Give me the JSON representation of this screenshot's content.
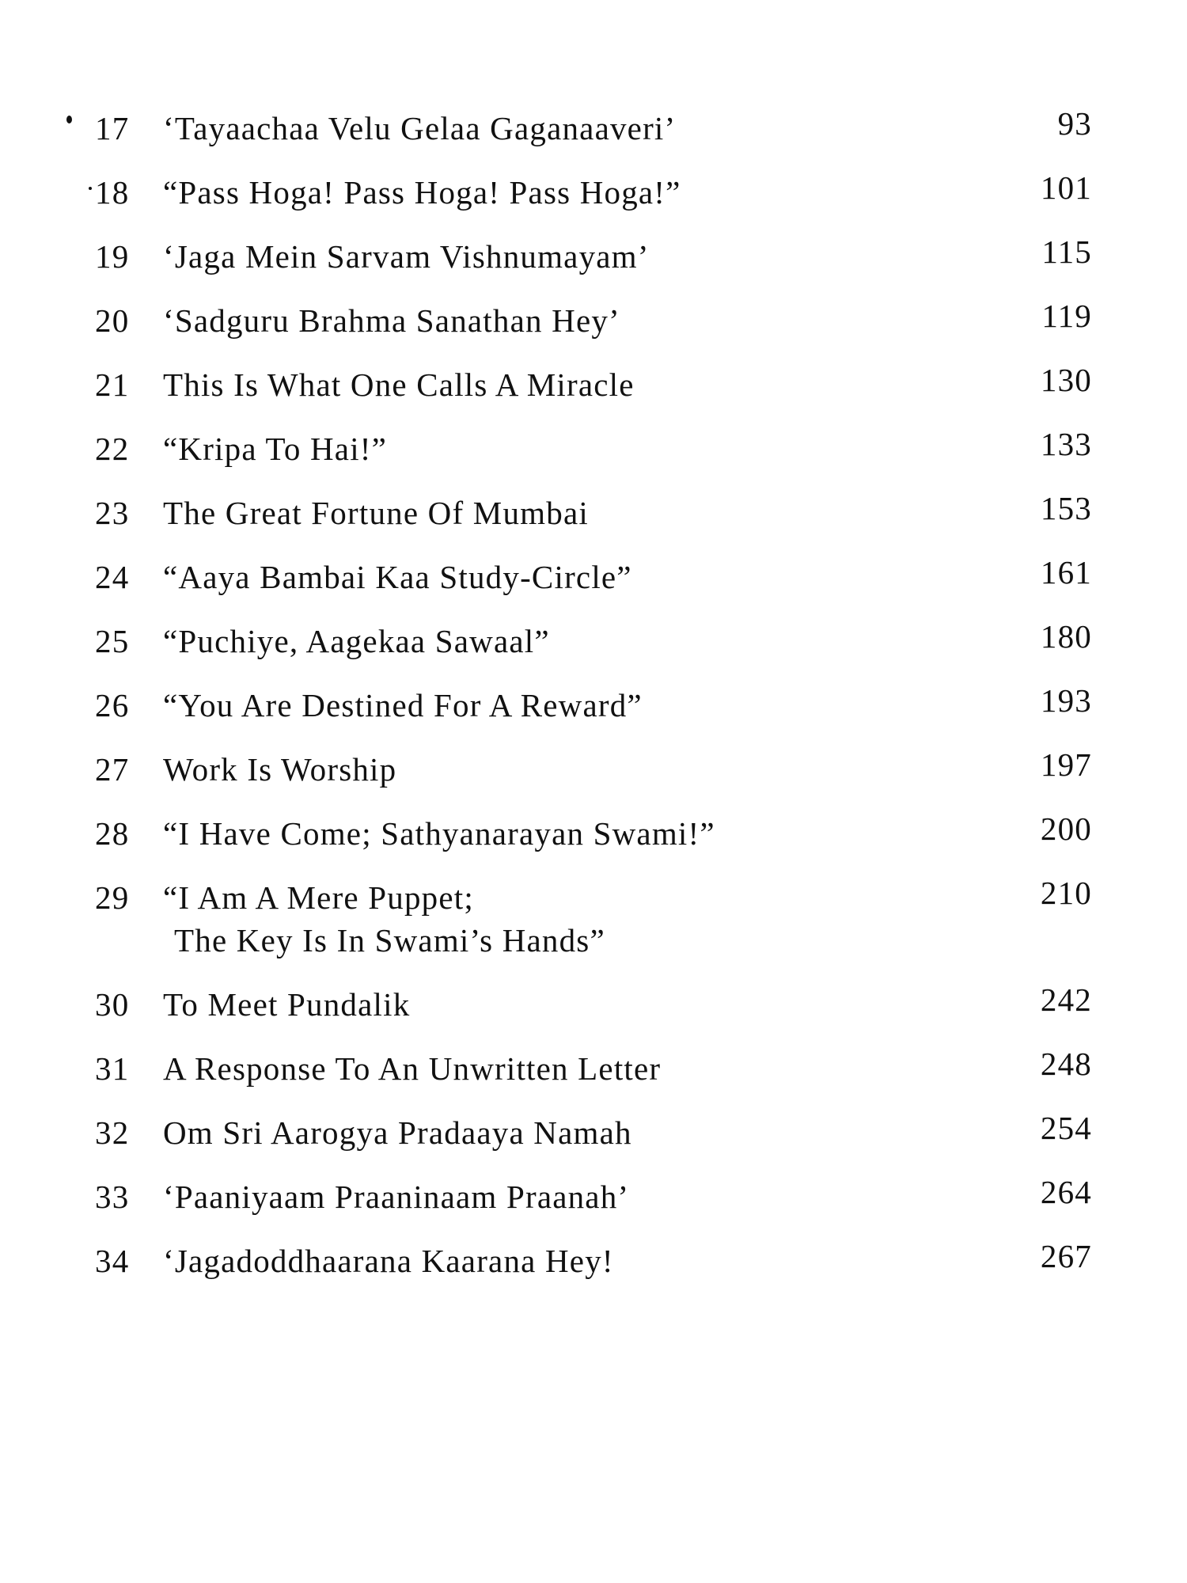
{
  "contents": [
    {
      "number": "17",
      "title": "‘Tayaachaa Velu Gelaa Gaganaaveri’",
      "page": "93"
    },
    {
      "number": "18",
      "title": "“Pass Hoga! Pass Hoga! Pass Hoga!”",
      "page": "101"
    },
    {
      "number": "19",
      "title": "‘Jaga Mein Sarvam Vishnumayam’",
      "page": "115"
    },
    {
      "number": "20",
      "title": "‘Sadguru Brahma Sanathan Hey’",
      "page": "119"
    },
    {
      "number": "21",
      "title": "This Is What One Calls A Miracle",
      "page": "130"
    },
    {
      "number": "22",
      "title": "“Kripa To Hai!”",
      "page": "133"
    },
    {
      "number": "23",
      "title": "The Great Fortune Of Mumbai",
      "page": "153"
    },
    {
      "number": "24",
      "title": "“Aaya Bambai Kaa Study-Circle”",
      "page": "161"
    },
    {
      "number": "25",
      "title": "“Puchiye, Aagekaa Sawaal”",
      "page": "180"
    },
    {
      "number": "26",
      "title": "“You Are Destined For A Reward”",
      "page": "193"
    },
    {
      "number": "27",
      "title": "Work Is Worship",
      "page": "197"
    },
    {
      "number": "28",
      "title": "“I Have Come; Sathyanarayan Swami!”",
      "page": "200"
    },
    {
      "number": "29",
      "title": "“I Am A Mere Puppet;",
      "title_line2": "The Key Is In Swami’s Hands”",
      "page": "210"
    },
    {
      "number": "30",
      "title": "To Meet Pundalik",
      "page": "242"
    },
    {
      "number": "31",
      "title": "A Response To An Unwritten Letter",
      "page": "248"
    },
    {
      "number": "32",
      "title": "Om Sri Aarogya Pradaaya Namah",
      "page": "254"
    },
    {
      "number": "33",
      "title": "‘Paaniyaam Praaninaam Praanah’",
      "page": "264"
    },
    {
      "number": "34",
      "title": "‘Jagadoddhaarana Kaarana Hey!",
      "page": "267"
    }
  ]
}
